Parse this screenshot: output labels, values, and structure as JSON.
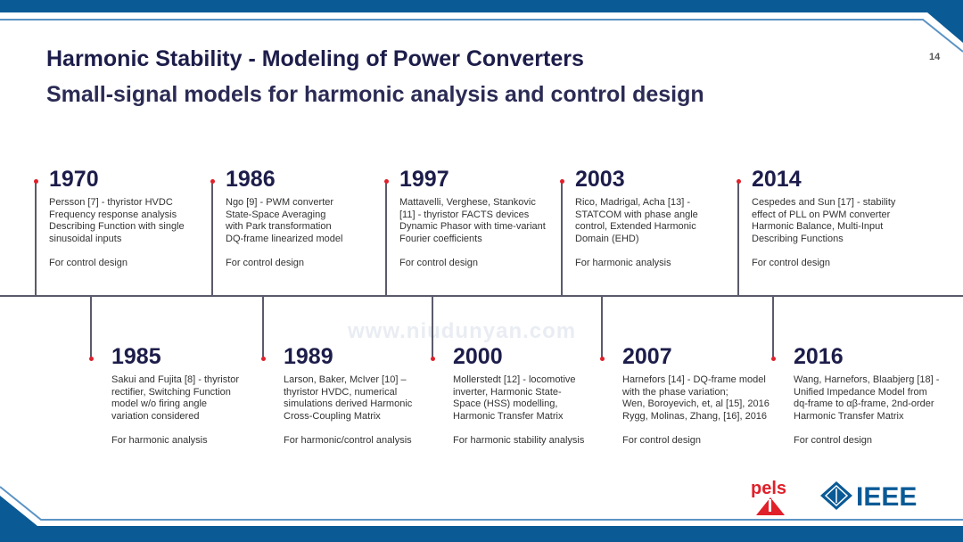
{
  "header": {
    "title": "Harmonic Stability - Modeling of Power Converters",
    "subtitle": "Small-signal models for harmonic analysis and control design",
    "page_number": "14"
  },
  "colors": {
    "brand_blue": "#0a5a96",
    "marker_red": "#e0202a",
    "title": "#1d1d4b"
  },
  "watermark": "www.niudunyan.com",
  "timeline": {
    "top": [
      {
        "year": "1970",
        "lines": [
          "Persson [7] - thyristor HVDC",
          "Frequency response analysis",
          "Describing Function with single",
          "sinusoidal inputs"
        ],
        "purpose": "For control design"
      },
      {
        "year": "1986",
        "lines": [
          "Ngo [9] - PWM converter",
          "State-Space Averaging",
          "with Park transformation",
          "DQ-frame linearized model"
        ],
        "purpose": "For control design"
      },
      {
        "year": "1997",
        "lines": [
          "Mattavelli, Verghese, Stankovic",
          "[11] - thyristor FACTS devices",
          "Dynamic Phasor with time-variant",
          "Fourier coefficients"
        ],
        "purpose": "For control design"
      },
      {
        "year": "2003",
        "lines": [
          "Rico, Madrigal, Acha [13] -",
          "STATCOM with phase angle",
          "control, Extended Harmonic",
          "Domain (EHD)"
        ],
        "purpose": "For harmonic analysis"
      },
      {
        "year": "2014",
        "lines": [
          "Cespedes and Sun [17] - stability",
          "effect of PLL on PWM converter",
          "Harmonic Balance, Multi-Input",
          "Describing Functions"
        ],
        "purpose": "For control design"
      }
    ],
    "bottom": [
      {
        "year": "1985",
        "lines": [
          "Sakui and Fujita [8] - thyristor",
          "rectifier, Switching Function",
          "model w/o firing angle",
          "variation considered"
        ],
        "purpose": "For harmonic analysis"
      },
      {
        "year": "1989",
        "lines": [
          "Larson, Baker, McIver [10] –",
          "thyristor HVDC, numerical",
          "simulations derived Harmonic",
          "Cross-Coupling Matrix"
        ],
        "purpose": "For harmonic/control analysis"
      },
      {
        "year": "2000",
        "lines": [
          "Mollerstedt [12] - locomotive",
          "inverter, Harmonic State-",
          "Space (HSS) modelling,",
          "Harmonic Transfer Matrix"
        ],
        "purpose": "For harmonic stability analysis"
      },
      {
        "year": "2007",
        "lines": [
          "Harnefors [14] - DQ-frame model",
          "with the phase variation;",
          "Wen, Boroyevich, et, al [15], 2016",
          "Rygg, Molinas, Zhang, [16], 2016"
        ],
        "purpose": "For control design"
      },
      {
        "year": "2016",
        "lines": [
          "Wang, Harnefors, Blaabjerg [18] -",
          "Unified Impedance Model from",
          "dq-frame to αβ-frame, 2nd-order",
          "Harmonic Transfer Matrix"
        ],
        "purpose": "For control design"
      }
    ]
  },
  "logos": {
    "pels": "pels",
    "ieee": "IEEE"
  }
}
